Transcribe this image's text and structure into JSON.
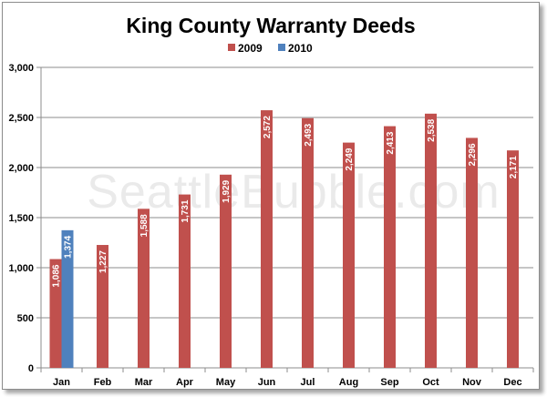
{
  "chart_data": {
    "type": "bar",
    "title": "King County Warranty Deeds",
    "categories": [
      "Jan",
      "Feb",
      "Mar",
      "Apr",
      "May",
      "Jun",
      "Jul",
      "Aug",
      "Sep",
      "Oct",
      "Nov",
      "Dec"
    ],
    "series": [
      {
        "name": "2009",
        "color": "#c0504d",
        "values": [
          1086,
          1227,
          1588,
          1731,
          1929,
          2572,
          2493,
          2249,
          2413,
          2538,
          2296,
          2171
        ],
        "labels": [
          "1,086",
          "1,227",
          "1,588",
          "1,731",
          "1,929",
          "2,572",
          "2,493",
          "2,249",
          "2,413",
          "2,538",
          "2,296",
          "2,171"
        ]
      },
      {
        "name": "2010",
        "color": "#4f81bd",
        "values": [
          1374,
          null,
          null,
          null,
          null,
          null,
          null,
          null,
          null,
          null,
          null,
          null
        ],
        "labels": [
          "1,374",
          "",
          "",
          "",
          "",
          "",
          "",
          "",
          "",
          "",
          "",
          ""
        ]
      }
    ],
    "ylim": [
      0,
      3000
    ],
    "yticks": [
      0,
      500,
      1000,
      1500,
      2000,
      2500,
      3000
    ],
    "ytick_labels": [
      "0",
      "500",
      "1,000",
      "1,500",
      "2,000",
      "2,500",
      "3,000"
    ],
    "grid": true,
    "legend": "top",
    "xlabel": "",
    "ylabel": ""
  },
  "watermark": "SeattleBubble.com"
}
